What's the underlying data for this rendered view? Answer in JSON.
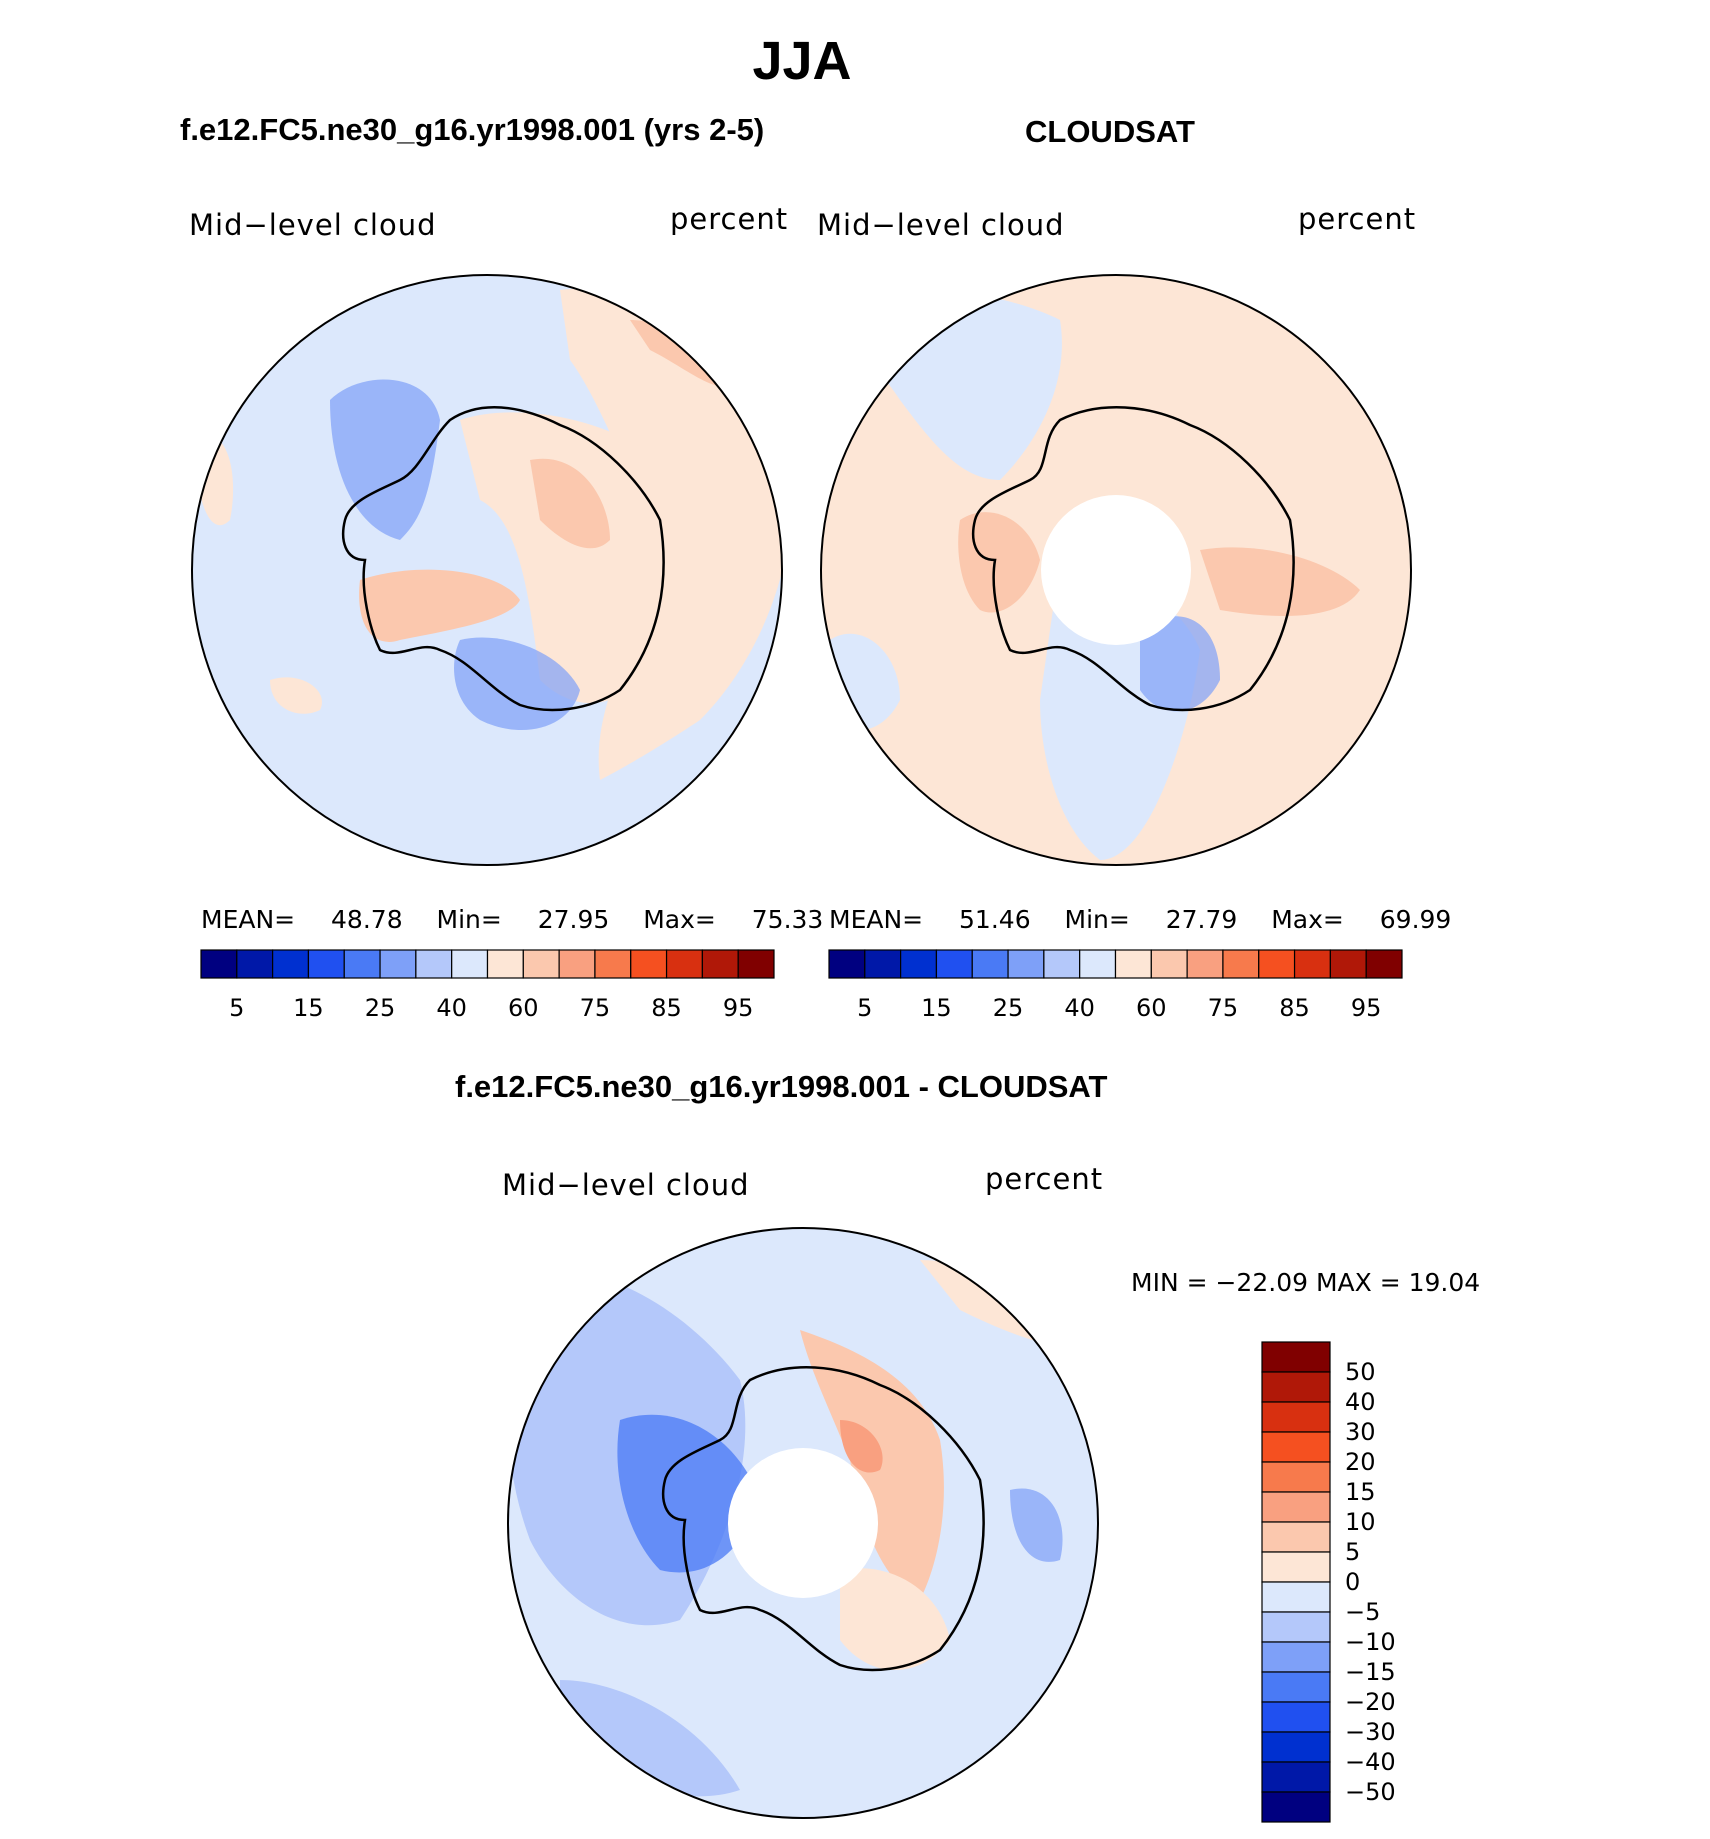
{
  "title": "JJA",
  "panels": {
    "model": {
      "subtitle": "f.e12.FC5.ne30_g16.yr1998.001 (yrs 2-5)",
      "label_left": "Mid−level cloud",
      "label_right": "percent",
      "stats": {
        "mean_label": "MEAN=",
        "mean": "48.78",
        "min_label": "Min=",
        "min": "27.95",
        "max_label": "Max=",
        "max": "75.33"
      }
    },
    "obs": {
      "subtitle": "CLOUDSAT",
      "label_left": "Mid−level cloud",
      "label_right": "percent",
      "stats": {
        "mean_label": "MEAN=",
        "mean": "51.46",
        "min_label": "Min=",
        "min": "27.79",
        "max_label": "Max=",
        "max": "69.99"
      }
    },
    "diff": {
      "subtitle": "f.e12.FC5.ne30_g16.yr1998.001 - CLOUDSAT",
      "label_left": "Mid−level cloud",
      "label_right": "percent",
      "stats_text": "MIN = −22.09 MAX =   19.04"
    }
  },
  "colorbar_abs": {
    "colors": [
      "#000080",
      "#0018a8",
      "#0030d0",
      "#2050f0",
      "#4a7af5",
      "#7ea0f8",
      "#b4c8fa",
      "#dce8fc",
      "#fde6d6",
      "#fbc8ae",
      "#f9a080",
      "#f77a4c",
      "#f55020",
      "#d83010",
      "#b01808",
      "#800000"
    ],
    "tick_labels": [
      "5",
      "15",
      "25",
      "40",
      "60",
      "75",
      "85",
      "95"
    ]
  },
  "colorbar_diff": {
    "colors_top_to_bottom": [
      "#800000",
      "#b01808",
      "#d83010",
      "#f55020",
      "#f77a4c",
      "#f9a080",
      "#fbc8ae",
      "#fde6d6",
      "#dce8fc",
      "#b4c8fa",
      "#7ea0f8",
      "#4a7af5",
      "#2050f0",
      "#0030d0",
      "#0018a8",
      "#000080"
    ],
    "tick_labels": [
      "50",
      "40",
      "30",
      "20",
      "15",
      "10",
      "5",
      "0",
      "−5",
      "−10",
      "−15",
      "−20",
      "−30",
      "−40",
      "−50"
    ]
  }
}
